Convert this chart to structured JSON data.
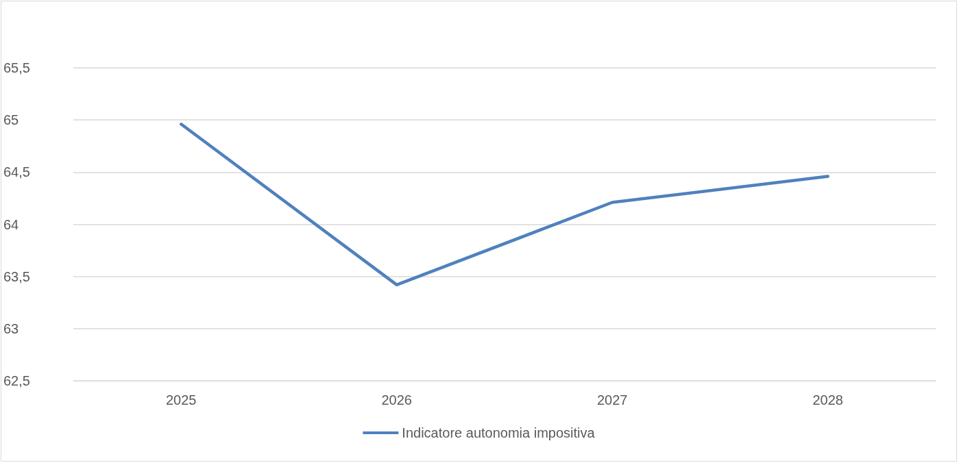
{
  "chart_data": {
    "type": "line",
    "categories": [
      "2025",
      "2026",
      "2027",
      "2028"
    ],
    "series": [
      {
        "name": "Indicatore autonomia impositiva",
        "color": "#4f81bd",
        "values": [
          64.96,
          63.42,
          64.21,
          64.46
        ]
      }
    ],
    "ylim": [
      62.5,
      65.5
    ],
    "yticks": [
      {
        "value": 62.5,
        "label": "62,5"
      },
      {
        "value": 63,
        "label": "63"
      },
      {
        "value": 63.5,
        "label": "63,5"
      },
      {
        "value": 64,
        "label": "64"
      },
      {
        "value": 64.5,
        "label": "64,5"
      },
      {
        "value": 65,
        "label": "65"
      },
      {
        "value": 65.5,
        "label": "65,5"
      }
    ],
    "grid": "y",
    "legend": "bottom",
    "marker": "none",
    "line_style": "solid"
  }
}
